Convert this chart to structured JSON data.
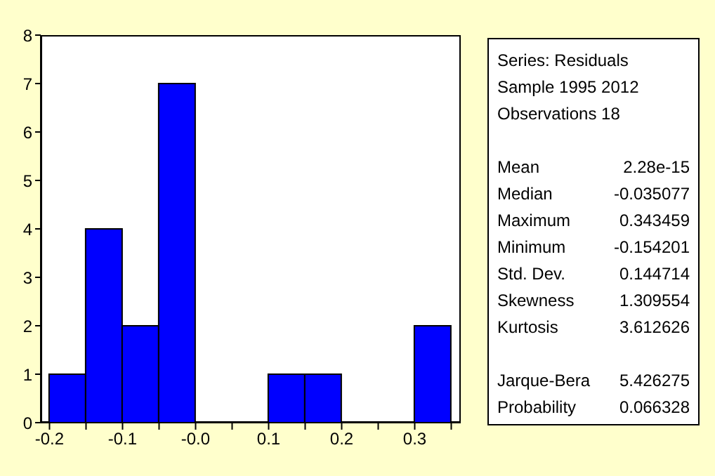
{
  "chart_data": [
    {
      "type": "histogram",
      "bins": [
        -0.2,
        -0.15,
        -0.1,
        -0.05,
        0,
        0.05,
        0.1,
        0.15,
        0.2,
        0.25,
        0.3,
        0.35
      ],
      "values": [
        1,
        4,
        2,
        7,
        0,
        0,
        1,
        1,
        0,
        0,
        2
      ],
      "color": "#0000ff",
      "xlim": [
        -0.212,
        0.363
      ],
      "xticks": [
        -0.2,
        {
          "value": -0.15,
          "label": null
        },
        -0.1,
        {
          "value": -0.05,
          "label": null
        },
        {
          "value": 0,
          "label": "-0.0"
        },
        {
          "value": 0.05,
          "label": null
        },
        0.1,
        {
          "value": 0.15,
          "label": null
        },
        0.2,
        {
          "value": 0.25,
          "label": null
        },
        0.3,
        {
          "value": 0.35,
          "label": null
        }
      ],
      "ylim": [
        0,
        8
      ],
      "yticks": [
        0,
        1,
        2,
        3,
        4,
        5,
        6,
        7,
        8
      ]
    },
    {
      "type": "other",
      "annotations": [
        "Series: Residuals",
        "Sample 1995 2012",
        "Observations 18"
      ],
      "categories": [
        "Mean",
        "Median",
        "Maximum",
        "Minimum",
        "Std. Dev.",
        "Skewness",
        "Kurtosis",
        null,
        "Jarque-Bera",
        "Probability"
      ],
      "value_labels": [
        "2.28e-15",
        "-0.035077",
        "0.343459",
        "-0.154201",
        "0.144714",
        "1.309554",
        "3.612626",
        null,
        "5.426275",
        "0.066328"
      ]
    }
  ]
}
